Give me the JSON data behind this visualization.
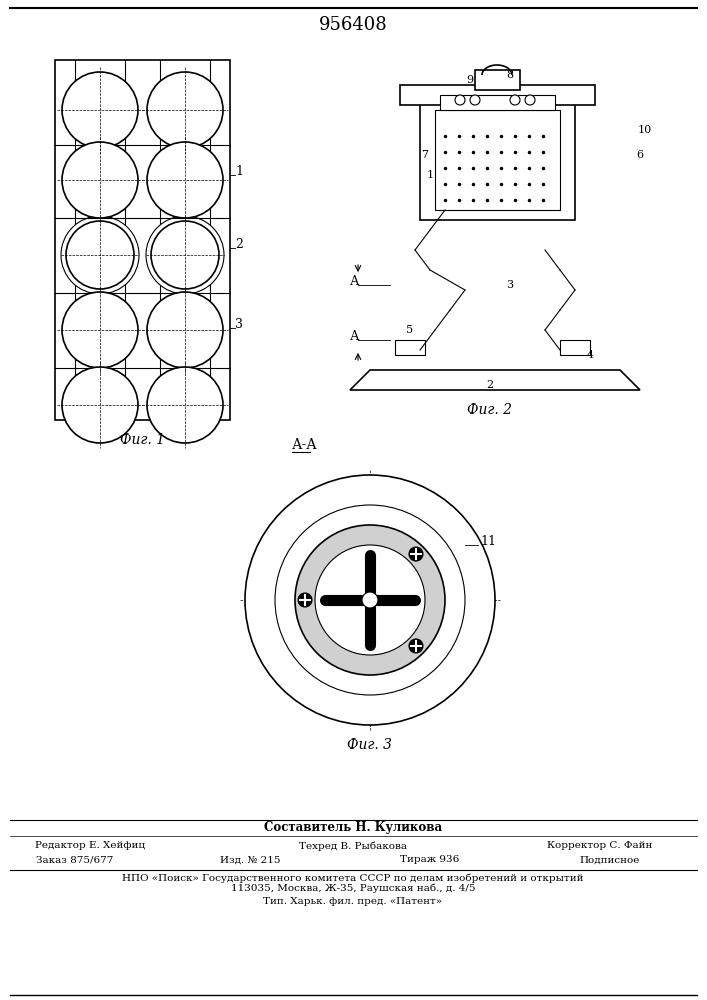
{
  "title": "956408",
  "title_fontsize": 13,
  "bg_color": "#ffffff",
  "fig1_label": "Фиг. 1",
  "fig2_label": "Фиг. 2",
  "fig3_label": "Фиг. 3",
  "section_label": "А-А",
  "footer_line1_left": "Редактор Е. Хейфиц",
  "footer_line1_center": "Составитель Н. Куликова",
  "footer_line1_right": "Корректор С. Файн",
  "footer_line2_left": "Техред В. Рыбакова",
  "footer_line3_col1": "Заказ 875/677",
  "footer_line3_col2": "Изд. № 215",
  "footer_line3_col3": "Тираж 936",
  "footer_line3_col4": "Подписное",
  "footer_line4": "НПО «Поиск» Государственного комитета СССР по делам изобретений и открытий",
  "footer_line5": "113035, Москва, Ж-35, Раушская наб., д. 4/5",
  "footer_line6": "Тип. Харьк. фил. пред. «Патент»"
}
